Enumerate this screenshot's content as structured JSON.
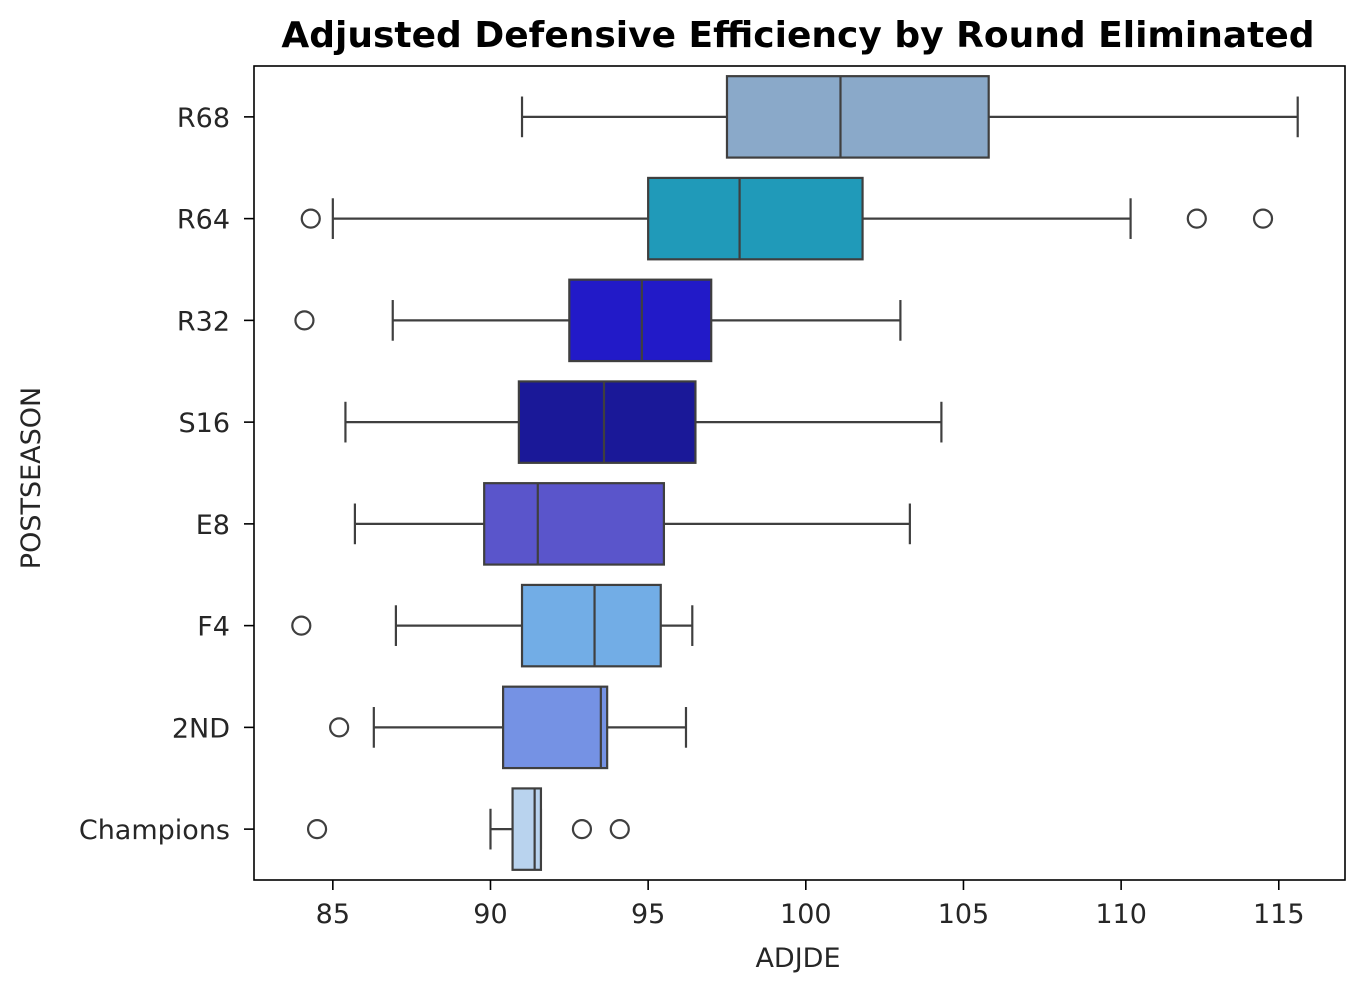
{
  "chart_data": {
    "type": "box",
    "orientation": "horizontal",
    "title": "Adjusted Defensive Efficiency by Round Eliminated",
    "xlabel": "ADJDE",
    "ylabel": "POSTSEASON",
    "xlim": [
      82.5,
      117.1
    ],
    "xticks": [
      85,
      90,
      95,
      100,
      105,
      110,
      115
    ],
    "grid": false,
    "categories": [
      "R68",
      "R64",
      "R32",
      "S16",
      "E8",
      "F4",
      "2ND",
      "Champions"
    ],
    "boxes": [
      {
        "category": "R68",
        "whisker_low": 91.0,
        "q1": 97.5,
        "median": 101.1,
        "q3": 105.8,
        "whisker_high": 115.6,
        "outliers": [],
        "color": "#8aa9c9"
      },
      {
        "category": "R64",
        "whisker_low": 85.0,
        "q1": 95.0,
        "median": 97.9,
        "q3": 101.8,
        "whisker_high": 110.3,
        "outliers": [
          84.3,
          112.4,
          114.5
        ],
        "color": "#209ab9"
      },
      {
        "category": "R32",
        "whisker_low": 86.9,
        "q1": 92.5,
        "median": 94.8,
        "q3": 97.0,
        "whisker_high": 103.0,
        "outliers": [
          84.1
        ],
        "color": "#221ac8"
      },
      {
        "category": "S16",
        "whisker_low": 85.4,
        "q1": 90.9,
        "median": 93.6,
        "q3": 96.5,
        "whisker_high": 104.3,
        "outliers": [],
        "color": "#1a1898"
      },
      {
        "category": "E8",
        "whisker_low": 85.7,
        "q1": 89.8,
        "median": 91.5,
        "q3": 95.5,
        "whisker_high": 103.3,
        "outliers": [],
        "color": "#5a55cb"
      },
      {
        "category": "F4",
        "whisker_low": 87.0,
        "q1": 91.0,
        "median": 93.3,
        "q3": 95.4,
        "whisker_high": 96.4,
        "outliers": [
          84.0
        ],
        "color": "#72ade6"
      },
      {
        "category": "2ND",
        "whisker_low": 86.3,
        "q1": 90.4,
        "median": 93.5,
        "q3": 93.7,
        "whisker_high": 96.2,
        "outliers": [
          85.2
        ],
        "color": "#7592e4"
      },
      {
        "category": "Champions",
        "whisker_low": 90.0,
        "q1": 90.7,
        "median": 91.4,
        "q3": 91.6,
        "whisker_high": 91.6,
        "outliers": [
          84.5,
          92.9,
          94.1
        ],
        "color": "#b9d3ee"
      }
    ]
  }
}
